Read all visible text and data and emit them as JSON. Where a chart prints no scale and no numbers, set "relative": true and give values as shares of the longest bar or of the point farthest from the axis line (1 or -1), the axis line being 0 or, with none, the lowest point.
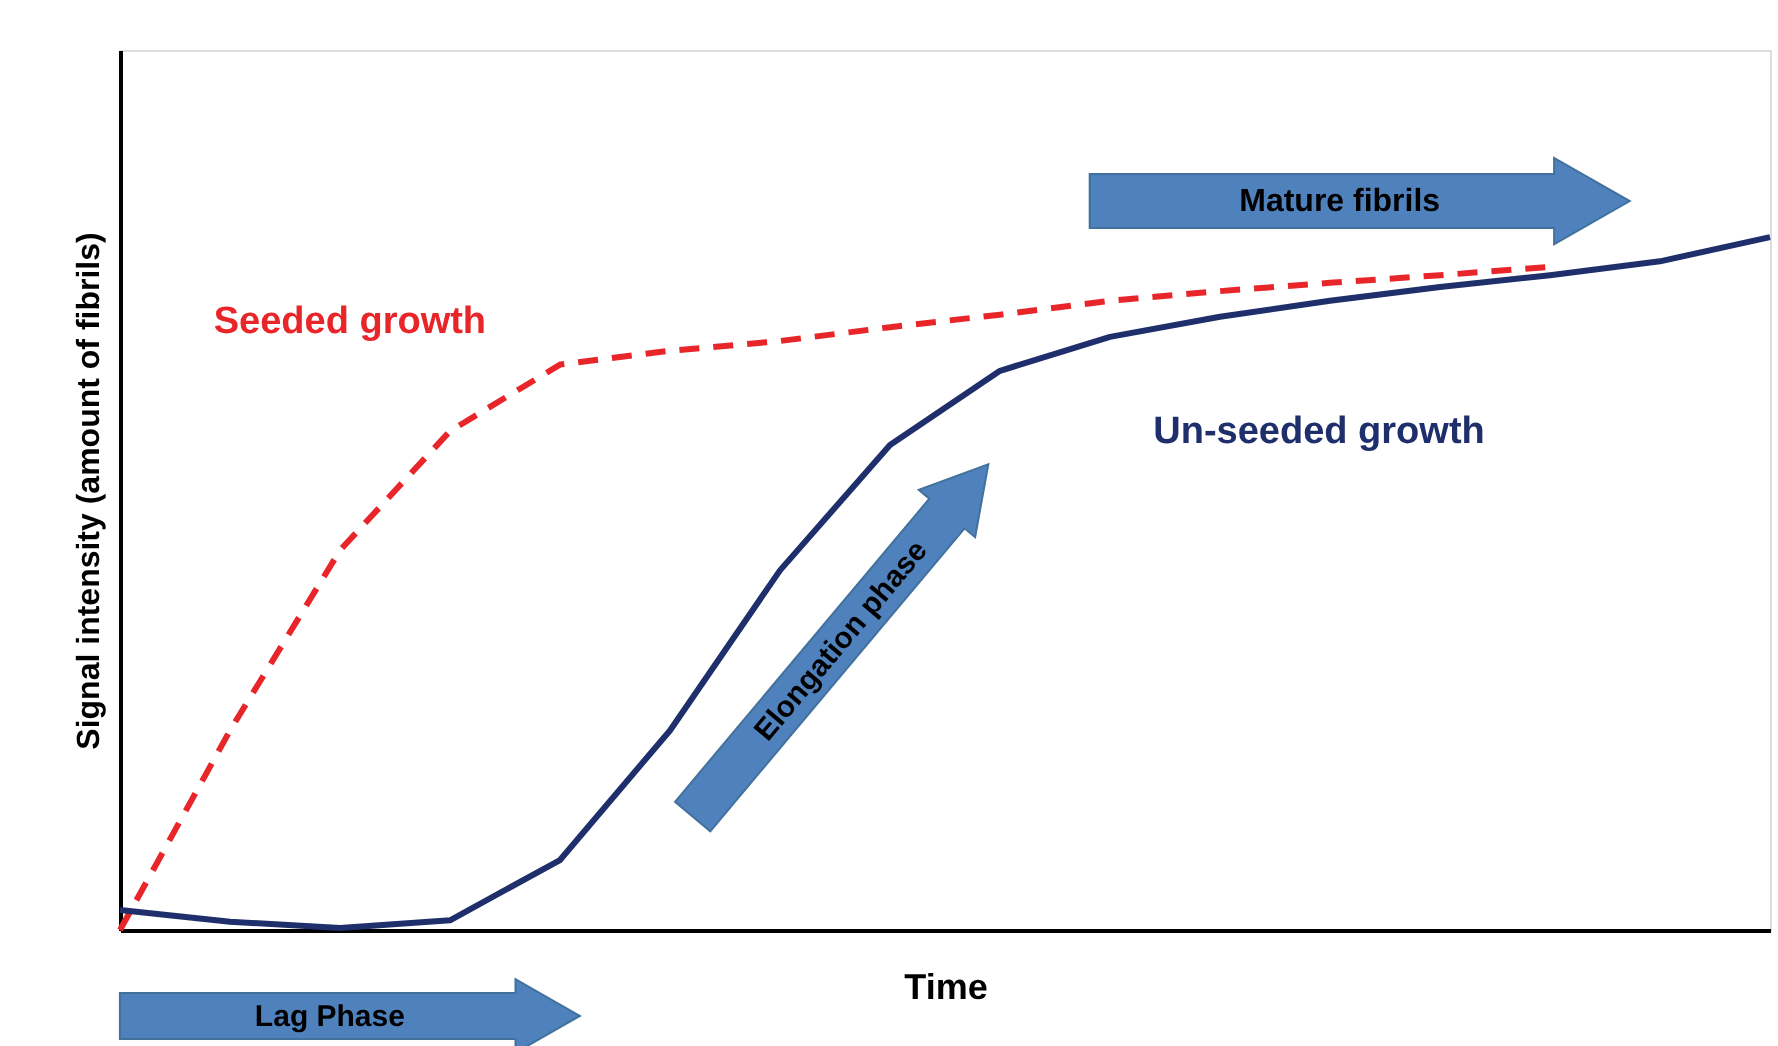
{
  "chart_data": {
    "type": "line",
    "relative": true,
    "xlabel": "Time",
    "ylabel": "Signal intensity (amount of fibrils)",
    "tick_labels": false,
    "grid": false,
    "marker": "none",
    "categories": [
      null,
      null,
      null,
      null,
      null,
      null,
      null,
      null,
      null,
      null,
      null,
      null,
      null,
      null,
      null,
      null
    ],
    "series": [
      {
        "name": "Seeded growth",
        "color": "#e8262a",
        "line_style": "dashed",
        "values": [
          0,
          0.288,
          0.548,
          0.72,
          0.816,
          0.836,
          0.85,
          0.87,
          0.888,
          0.908,
          0.922,
          0.934,
          0.945,
          0.957,
          null,
          null
        ]
      },
      {
        "name": "Un-seeded growth",
        "color": "#1f2f6b",
        "line_style": "solid",
        "values": [
          0.029,
          0.012,
          0.003,
          0.014,
          0.101,
          0.288,
          0.519,
          0.7,
          0.807,
          0.856,
          0.885,
          0.908,
          0.928,
          0.945,
          0.965,
          1
        ]
      }
    ],
    "annotations": [
      "Lag Phase",
      "Elongation phase",
      "Mature fibrils"
    ]
  }
}
